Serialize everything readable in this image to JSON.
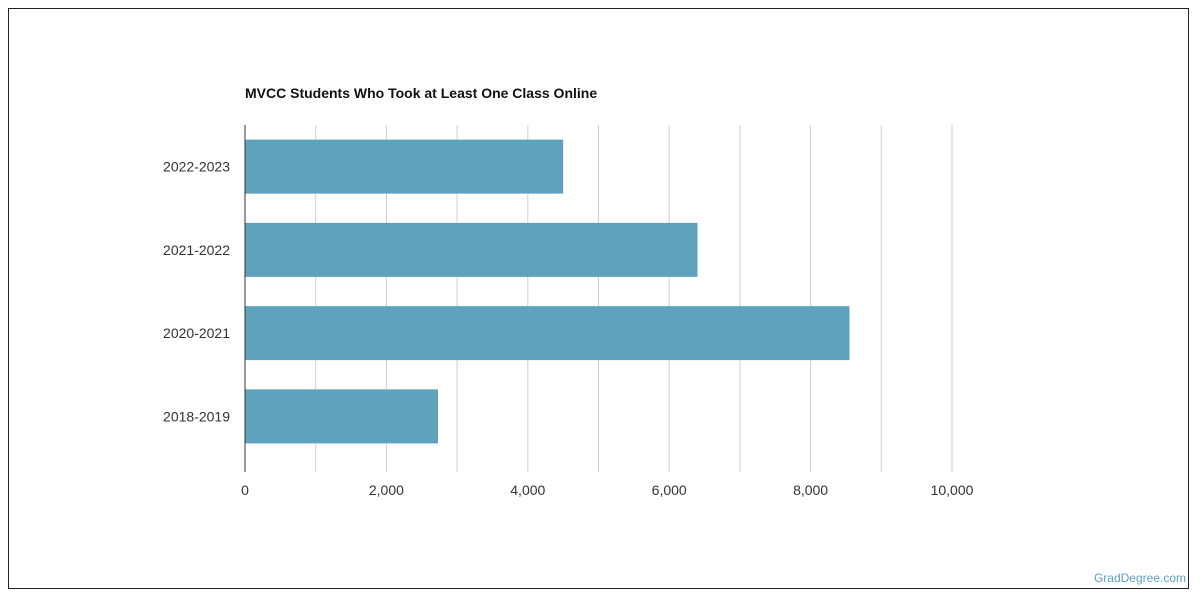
{
  "chart_data": {
    "type": "bar",
    "orientation": "horizontal",
    "title": "MVCC Students Who Took at Least One Class Online",
    "categories": [
      "2022-2023",
      "2021-2022",
      "2020-2021",
      "2018-2019"
    ],
    "values": [
      4500,
      6400,
      8550,
      2730
    ],
    "xlim": [
      0,
      10000
    ],
    "xticks": [
      0,
      2000,
      4000,
      6000,
      8000,
      10000
    ],
    "xtick_labels": [
      "0",
      "2,000",
      "4,000",
      "6,000",
      "8,000",
      "10,000"
    ],
    "grid": true,
    "bar_color": "#5ea2be"
  },
  "watermark": "GradDegree.com"
}
